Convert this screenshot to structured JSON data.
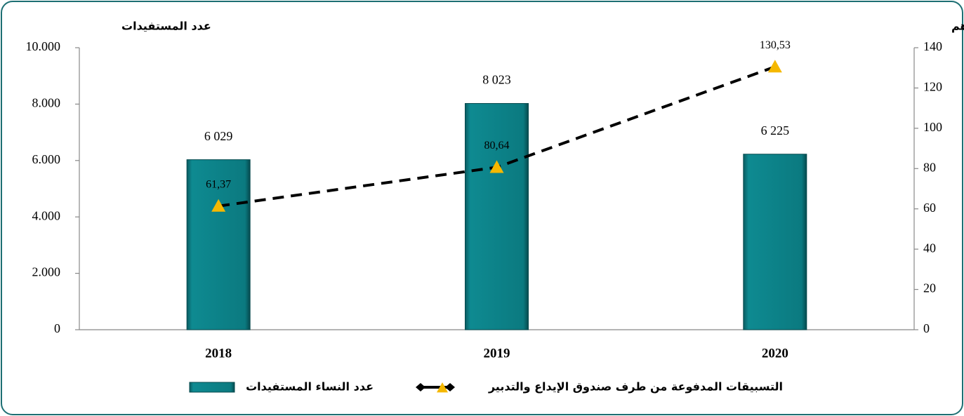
{
  "chart_data": {
    "type": "bar",
    "y_label": "عدد المستفيدات",
    "y2_label": "النفقات بملايين الدراهم",
    "categories": [
      "2018",
      "2019",
      "2020"
    ],
    "series": [
      {
        "name": "عدد النساء المستفيدات",
        "type": "bar",
        "color": "#0b7a80",
        "values": [
          6029,
          8023,
          6225
        ],
        "value_labels": [
          "6 029",
          "8 023",
          "6 225"
        ]
      },
      {
        "name": "التسبيقات المدفوعة من طرف صندوق الإيداع والتدبير",
        "type": "line",
        "axis": "y2",
        "color": "#f5b800",
        "line_color": "#000000",
        "values": [
          61.37,
          80.64,
          130.53
        ],
        "value_labels": [
          "61,37",
          "80,64",
          "130,53"
        ]
      }
    ],
    "ylim": [
      0,
      10000
    ],
    "yticks": [
      0,
      {
        "value": 2000,
        "label": "2.000"
      },
      {
        "value": 4000,
        "label": "4.000"
      },
      {
        "value": 6000,
        "label": "6.000"
      },
      {
        "value": 8000,
        "label": "8.000"
      },
      {
        "value": 10000,
        "label": "10.000"
      }
    ],
    "y2lim": [
      0,
      140
    ],
    "y2ticks": [
      0,
      20,
      40,
      60,
      80,
      100,
      120,
      140
    ],
    "grid": false
  }
}
